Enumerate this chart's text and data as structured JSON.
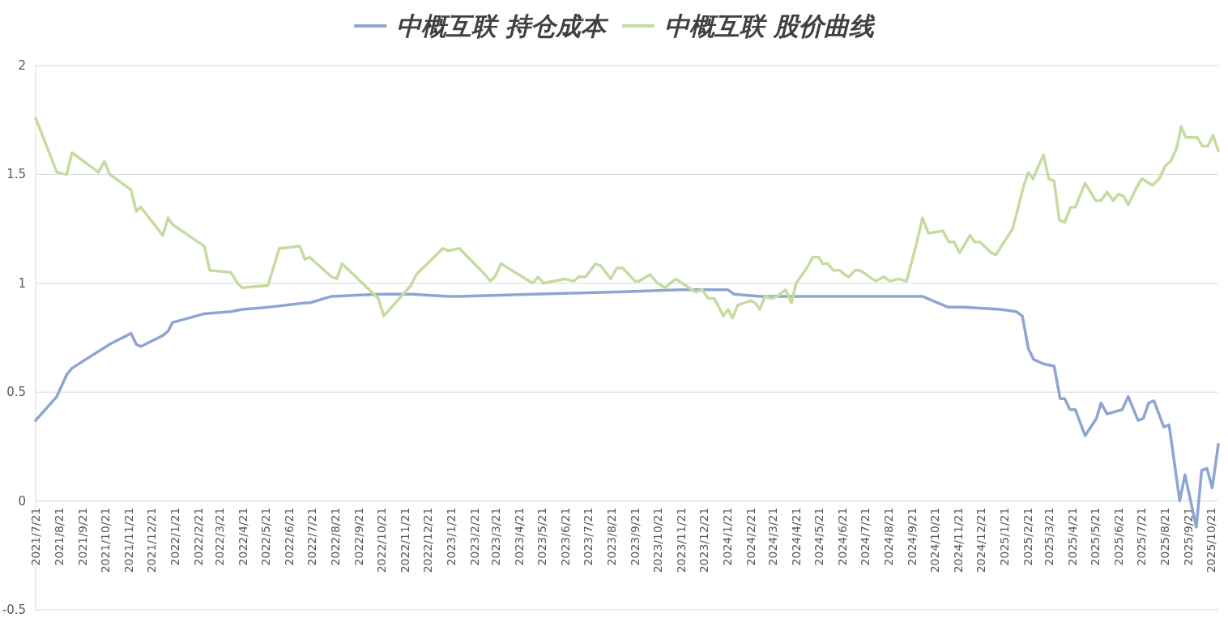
{
  "chart_data": {
    "type": "line",
    "legend": "top",
    "grid": "y",
    "marker": "none",
    "line_style": "solid",
    "xlim": [
      "2021-07-21",
      "2025-10-31"
    ],
    "ylim": [
      -0.5,
      2
    ],
    "yticks": [
      -0.5,
      0,
      0.5,
      1,
      1.5,
      2
    ],
    "xticks": [
      {
        "value": "2021-07-21",
        "label": "2021/7/21"
      },
      {
        "value": "2021-08-21",
        "label": "2021/8/21"
      },
      {
        "value": "2021-09-21",
        "label": "2021/9/21"
      },
      {
        "value": "2021-10-21",
        "label": "2021/10/21"
      },
      {
        "value": "2021-11-21",
        "label": "2021/11/21"
      },
      {
        "value": "2021-12-21",
        "label": "2021/12/21"
      },
      {
        "value": "2022-01-21",
        "label": "2022/1/21"
      },
      {
        "value": "2022-02-21",
        "label": "2022/2/21"
      },
      {
        "value": "2022-03-21",
        "label": "2022/3/21"
      },
      {
        "value": "2022-04-21",
        "label": "2022/4/21"
      },
      {
        "value": "2022-05-21",
        "label": "2022/5/21"
      },
      {
        "value": "2022-06-21",
        "label": "2022/6/21"
      },
      {
        "value": "2022-07-21",
        "label": "2022/7/21"
      },
      {
        "value": "2022-08-21",
        "label": "2022/8/21"
      },
      {
        "value": "2022-09-21",
        "label": "2022/9/21"
      },
      {
        "value": "2022-10-21",
        "label": "2022/10/21"
      },
      {
        "value": "2022-11-21",
        "label": "2022/11/21"
      },
      {
        "value": "2022-12-21",
        "label": "2022/12/21"
      },
      {
        "value": "2023-01-21",
        "label": "2023/1/21"
      },
      {
        "value": "2023-02-21",
        "label": "2023/2/21"
      },
      {
        "value": "2023-03-21",
        "label": "2023/3/21"
      },
      {
        "value": "2023-04-21",
        "label": "2023/4/21"
      },
      {
        "value": "2023-05-21",
        "label": "2023/5/21"
      },
      {
        "value": "2023-06-21",
        "label": "2023/6/21"
      },
      {
        "value": "2023-07-21",
        "label": "2023/7/21"
      },
      {
        "value": "2023-08-21",
        "label": "2023/8/21"
      },
      {
        "value": "2023-09-21",
        "label": "2023/9/21"
      },
      {
        "value": "2023-10-21",
        "label": "2023/10/21"
      },
      {
        "value": "2023-11-21",
        "label": "2023/11/21"
      },
      {
        "value": "2023-12-21",
        "label": "2023/12/21"
      },
      {
        "value": "2024-01-21",
        "label": "2024/1/21"
      },
      {
        "value": "2024-02-21",
        "label": "2024/2/21"
      },
      {
        "value": "2024-03-21",
        "label": "2024/3/21"
      },
      {
        "value": "2024-04-21",
        "label": "2024/4/21"
      },
      {
        "value": "2024-05-21",
        "label": "2024/5/21"
      },
      {
        "value": "2024-06-21",
        "label": "2024/6/21"
      },
      {
        "value": "2024-07-21",
        "label": "2024/7/21"
      },
      {
        "value": "2024-08-21",
        "label": "2024/8/21"
      },
      {
        "value": "2024-09-21",
        "label": "2024/9/21"
      },
      {
        "value": "2024-10-21",
        "label": "2024/10/21"
      },
      {
        "value": "2024-11-21",
        "label": "2024/11/21"
      },
      {
        "value": "2024-12-21",
        "label": "2024/12/21"
      },
      {
        "value": "2025-01-21",
        "label": "2025/1/21"
      },
      {
        "value": "2025-02-21",
        "label": "2025/2/21"
      },
      {
        "value": "2025-03-21",
        "label": "2025/3/21"
      },
      {
        "value": "2025-04-21",
        "label": "2025/4/21"
      },
      {
        "value": "2025-05-21",
        "label": "2025/5/21"
      },
      {
        "value": "2025-06-21",
        "label": "2025/6/21"
      },
      {
        "value": "2025-07-21",
        "label": "2025/7/21"
      },
      {
        "value": "2025-08-21",
        "label": "2025/8/21"
      },
      {
        "value": "2025-09-21",
        "label": "2025/9/21"
      },
      {
        "value": "2025-10-21",
        "label": "2025/10/21"
      }
    ],
    "series": [
      {
        "name": "中概互联 持仓成本",
        "color": "#8ea5d2",
        "x": [
          "2021-07-21",
          "2021-08-18",
          "2021-08-31",
          "2021-09-07",
          "2021-10-27",
          "2021-11-24",
          "2021-12-01",
          "2021-12-07",
          "2022-01-05",
          "2022-01-12",
          "2022-01-18",
          "2022-03-01",
          "2022-04-05",
          "2022-04-20",
          "2022-05-24",
          "2022-07-12",
          "2022-07-18",
          "2022-08-16",
          "2022-10-17",
          "2022-11-29",
          "2023-01-18",
          "2023-02-01",
          "2023-05-09",
          "2023-08-28",
          "2023-11-20",
          "2024-01-22",
          "2024-01-30",
          "2024-03-05",
          "2024-06-18",
          "2024-09-16",
          "2024-10-05",
          "2024-11-08",
          "2024-11-29",
          "2025-01-16",
          "2025-02-06",
          "2025-02-14",
          "2025-02-22",
          "2025-03-01",
          "2025-03-14",
          "2025-03-28",
          "2025-04-05",
          "2025-04-11",
          "2025-04-18",
          "2025-04-25",
          "2025-05-08",
          "2025-05-23",
          "2025-05-29",
          "2025-06-06",
          "2025-06-26",
          "2025-07-04",
          "2025-07-17",
          "2025-07-24",
          "2025-07-31",
          "2025-08-07",
          "2025-08-20",
          "2025-08-27",
          "2025-09-10",
          "2025-09-17",
          "2025-10-02",
          "2025-10-09",
          "2025-10-16",
          "2025-10-23",
          "2025-10-31"
        ],
        "values": [
          0.37,
          0.48,
          0.58,
          0.61,
          0.72,
          0.77,
          0.72,
          0.71,
          0.76,
          0.78,
          0.82,
          0.86,
          0.87,
          0.88,
          0.89,
          0.91,
          0.91,
          0.94,
          0.95,
          0.95,
          0.94,
          0.94,
          0.95,
          0.96,
          0.97,
          0.97,
          0.95,
          0.94,
          0.94,
          0.94,
          0.94,
          0.89,
          0.89,
          0.88,
          0.87,
          0.85,
          0.7,
          0.65,
          0.63,
          0.62,
          0.47,
          0.47,
          0.42,
          0.42,
          0.3,
          0.38,
          0.45,
          0.4,
          0.42,
          0.48,
          0.37,
          0.38,
          0.45,
          0.46,
          0.34,
          0.35,
          0.0,
          0.12,
          -0.12,
          0.14,
          0.15,
          0.06,
          0.26
        ]
      },
      {
        "name": "中概互联 股价曲线",
        "color": "#c5dca0",
        "x": [
          "2021-07-21",
          "2021-08-18",
          "2021-08-31",
          "2021-09-07",
          "2021-10-12",
          "2021-10-20",
          "2021-10-27",
          "2021-11-24",
          "2021-12-01",
          "2021-12-07",
          "2022-01-05",
          "2022-01-12",
          "2022-01-18",
          "2022-03-01",
          "2022-03-08",
          "2022-04-05",
          "2022-04-14",
          "2022-04-20",
          "2022-05-24",
          "2022-05-31",
          "2022-06-08",
          "2022-07-05",
          "2022-07-12",
          "2022-07-18",
          "2022-08-16",
          "2022-08-23",
          "2022-08-30",
          "2022-10-17",
          "2022-10-24",
          "2022-11-29",
          "2022-12-06",
          "2023-01-10",
          "2023-01-18",
          "2023-02-01",
          "2023-03-07",
          "2023-03-14",
          "2023-03-20",
          "2023-03-28",
          "2023-05-09",
          "2023-05-16",
          "2023-05-23",
          "2023-06-20",
          "2023-07-02",
          "2023-07-09",
          "2023-07-18",
          "2023-07-31",
          "2023-08-07",
          "2023-08-20",
          "2023-08-28",
          "2023-09-05",
          "2023-09-13",
          "2023-09-21",
          "2023-09-27",
          "2023-10-11",
          "2023-10-21",
          "2023-10-31",
          "2023-11-10",
          "2023-11-14",
          "2023-11-27",
          "2023-12-10",
          "2023-12-19",
          "2023-12-27",
          "2024-01-04",
          "2024-01-16",
          "2024-01-22",
          "2024-01-28",
          "2024-02-04",
          "2024-02-21",
          "2024-02-27",
          "2024-03-04",
          "2024-03-11",
          "2024-03-19",
          "2024-03-27",
          "2024-04-07",
          "2024-04-15",
          "2024-04-21",
          "2024-05-05",
          "2024-05-13",
          "2024-05-21",
          "2024-05-26",
          "2024-06-02",
          "2024-06-09",
          "2024-06-18",
          "2024-06-24",
          "2024-06-30",
          "2024-07-08",
          "2024-07-14",
          "2024-07-23",
          "2024-08-04",
          "2024-08-15",
          "2024-08-23",
          "2024-09-03",
          "2024-09-14",
          "2024-09-27",
          "2024-10-05",
          "2024-10-13",
          "2024-11-01",
          "2024-11-09",
          "2024-11-16",
          "2024-11-23",
          "2024-12-07",
          "2024-12-13",
          "2024-12-20",
          "2025-01-04",
          "2025-01-10",
          "2025-02-01",
          "2025-02-08",
          "2025-02-16",
          "2025-02-22",
          "2025-02-28",
          "2025-03-14",
          "2025-03-21",
          "2025-03-28",
          "2025-04-04",
          "2025-04-11",
          "2025-04-19",
          "2025-04-25",
          "2025-05-08",
          "2025-05-22",
          "2025-05-29",
          "2025-06-06",
          "2025-06-14",
          "2025-06-21",
          "2025-06-28",
          "2025-07-04",
          "2025-07-15",
          "2025-07-22",
          "2025-08-05",
          "2025-08-14",
          "2025-08-22",
          "2025-08-29",
          "2025-09-06",
          "2025-09-12",
          "2025-09-18",
          "2025-10-03",
          "2025-10-10",
          "2025-10-17",
          "2025-10-24",
          "2025-10-31"
        ],
        "values": [
          1.76,
          1.51,
          1.5,
          1.6,
          1.51,
          1.56,
          1.5,
          1.43,
          1.33,
          1.35,
          1.22,
          1.3,
          1.27,
          1.17,
          1.06,
          1.05,
          1.0,
          0.98,
          0.99,
          1.07,
          1.16,
          1.17,
          1.11,
          1.12,
          1.03,
          1.02,
          1.09,
          0.93,
          0.85,
          0.99,
          1.04,
          1.16,
          1.15,
          1.16,
          1.04,
          1.01,
          1.03,
          1.09,
          1.0,
          1.03,
          1.0,
          1.02,
          1.01,
          1.03,
          1.03,
          1.09,
          1.08,
          1.02,
          1.07,
          1.07,
          1.04,
          1.01,
          1.01,
          1.04,
          1.0,
          0.98,
          1.01,
          1.02,
          0.99,
          0.96,
          0.97,
          0.93,
          0.93,
          0.85,
          0.88,
          0.84,
          0.9,
          0.92,
          0.91,
          0.88,
          0.94,
          0.93,
          0.94,
          0.97,
          0.91,
          1.0,
          1.07,
          1.12,
          1.12,
          1.09,
          1.09,
          1.06,
          1.06,
          1.04,
          1.03,
          1.06,
          1.06,
          1.04,
          1.01,
          1.03,
          1.01,
          1.02,
          1.01,
          1.18,
          1.3,
          1.23,
          1.24,
          1.19,
          1.19,
          1.14,
          1.22,
          1.19,
          1.19,
          1.14,
          1.13,
          1.25,
          1.34,
          1.45,
          1.51,
          1.48,
          1.59,
          1.48,
          1.47,
          1.29,
          1.28,
          1.35,
          1.35,
          1.46,
          1.38,
          1.38,
          1.42,
          1.38,
          1.41,
          1.4,
          1.36,
          1.44,
          1.48,
          1.45,
          1.48,
          1.54,
          1.56,
          1.62,
          1.72,
          1.67,
          1.67,
          1.63,
          1.63,
          1.68,
          1.61
        ]
      }
    ]
  }
}
